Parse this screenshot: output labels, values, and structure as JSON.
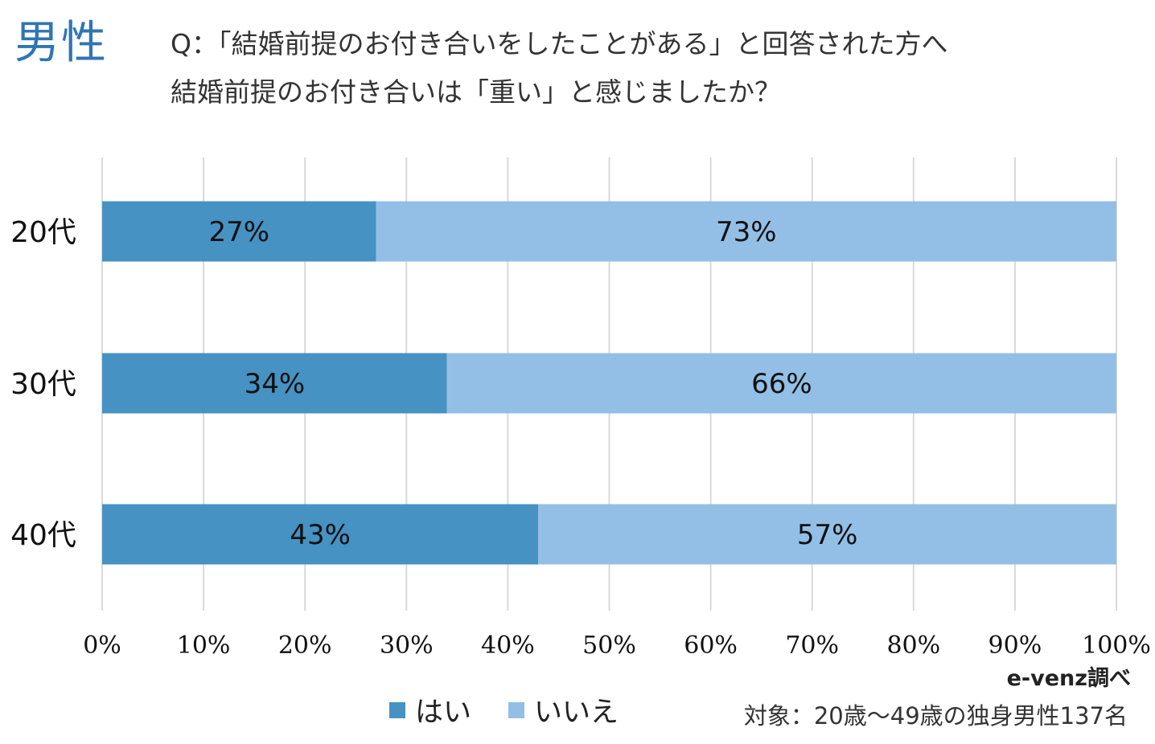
{
  "header": {
    "gender": "男性",
    "question_line1": "Q：「結婚前提のお付き合いをしたことがある」と回答された方へ",
    "question_line2": "結婚前提のお付き合いは「重い」と感じましたか？"
  },
  "footer": {
    "source": "e-venz調べ",
    "target": "対象：20歳〜49歳の独身男性137名"
  },
  "colors": {
    "yes": "#4592c3",
    "no": "#93bfe6",
    "grid": "#d9d9d9"
  },
  "chart_data": {
    "type": "bar",
    "orientation": "horizontal",
    "stacked": true,
    "title": "",
    "categories": [
      "20代",
      "30代",
      "40代"
    ],
    "series": [
      {
        "name": "はい",
        "values": [
          27,
          34,
          43
        ],
        "labels": [
          "27%",
          "34%",
          "43%"
        ]
      },
      {
        "name": "いいえ",
        "values": [
          73,
          66,
          57
        ],
        "labels": [
          "73%",
          "66%",
          "57%"
        ]
      }
    ],
    "xlim": [
      0,
      100
    ],
    "xticks": [
      "0%",
      "10%",
      "20%",
      "30%",
      "40%",
      "50%",
      "60%",
      "70%",
      "80%",
      "90%",
      "100%"
    ],
    "grid": true,
    "legend_position": "bottom"
  }
}
